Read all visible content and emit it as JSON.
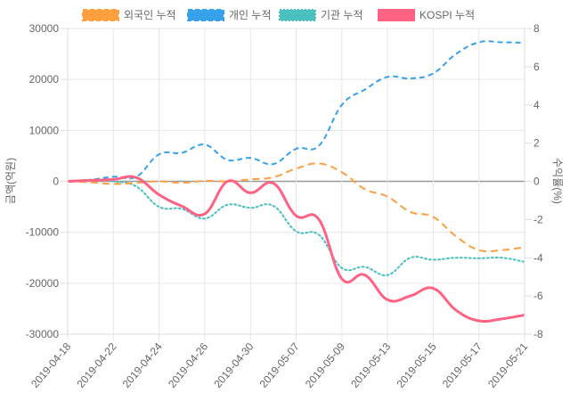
{
  "chart_data": {
    "type": "line",
    "x": [
      "2019-04-18",
      "2019-04-19",
      "2019-04-22",
      "2019-04-23",
      "2019-04-24",
      "2019-04-25",
      "2019-04-26",
      "2019-04-29",
      "2019-04-30",
      "2019-05-02",
      "2019-05-07",
      "2019-05-08",
      "2019-05-09",
      "2019-05-10",
      "2019-05-13",
      "2019-05-14",
      "2019-05-15",
      "2019-05-16",
      "2019-05-17",
      "2019-05-20",
      "2019-05-21"
    ],
    "x_tick_labels": [
      "2019-04-18",
      "2019-04-22",
      "2019-04-24",
      "2019-04-26",
      "2019-04-30",
      "2019-05-07",
      "2019-05-09",
      "2019-05-13",
      "2019-05-15",
      "2019-05-17",
      "2019-05-21"
    ],
    "ylabel": "금액(억원)",
    "y2label": "수익률(%)",
    "ylim": [
      -30000,
      30000
    ],
    "y2lim": [
      -8,
      8
    ],
    "y_ticks": [
      "30000",
      "20000",
      "10000",
      "0",
      "-10000",
      "-20000",
      "-30000"
    ],
    "y2_ticks": [
      "8",
      "6",
      "4",
      "2",
      "0",
      "-2",
      "-4",
      "-6",
      "-8"
    ],
    "grid": true,
    "legend": "top",
    "series": [
      {
        "name": "외국인 누적",
        "axis": "left",
        "color": "#ff9f40",
        "style": "dashed",
        "values": [
          0,
          -200,
          -500,
          -300,
          0,
          -300,
          100,
          0,
          400,
          800,
          2500,
          3500,
          1800,
          -1500,
          -3000,
          -6000,
          -7000,
          -10800,
          -13500,
          -13500,
          -12900
        ]
      },
      {
        "name": "개인 누적",
        "axis": "left",
        "color": "#36a2eb",
        "style": "dashed",
        "values": [
          0,
          300,
          900,
          900,
          5300,
          5600,
          7200,
          4200,
          4600,
          3400,
          6400,
          7000,
          15000,
          18000,
          20500,
          20200,
          21200,
          25000,
          27300,
          27300,
          27200
        ]
      },
      {
        "name": "기관 누적",
        "axis": "left",
        "color": "#4bc0c0",
        "style": "dotted",
        "values": [
          0,
          300,
          0,
          -1000,
          -5000,
          -5400,
          -7300,
          -4600,
          -5200,
          -4800,
          -9800,
          -10500,
          -17000,
          -16800,
          -18400,
          -15000,
          -15400,
          -15000,
          -15100,
          -15000,
          -15800
        ]
      },
      {
        "name": "KOSPI 누적",
        "axis": "right",
        "color": "#ff6384",
        "style": "solid",
        "values": [
          0,
          0.05,
          0.1,
          0.2,
          -0.7,
          -1.3,
          -1.7,
          0,
          -0.6,
          -0.1,
          -1.8,
          -2.0,
          -5.1,
          -4.9,
          -6.2,
          -6.0,
          -5.6,
          -6.75,
          -7.3,
          -7.2,
          -7.0
        ]
      }
    ]
  }
}
